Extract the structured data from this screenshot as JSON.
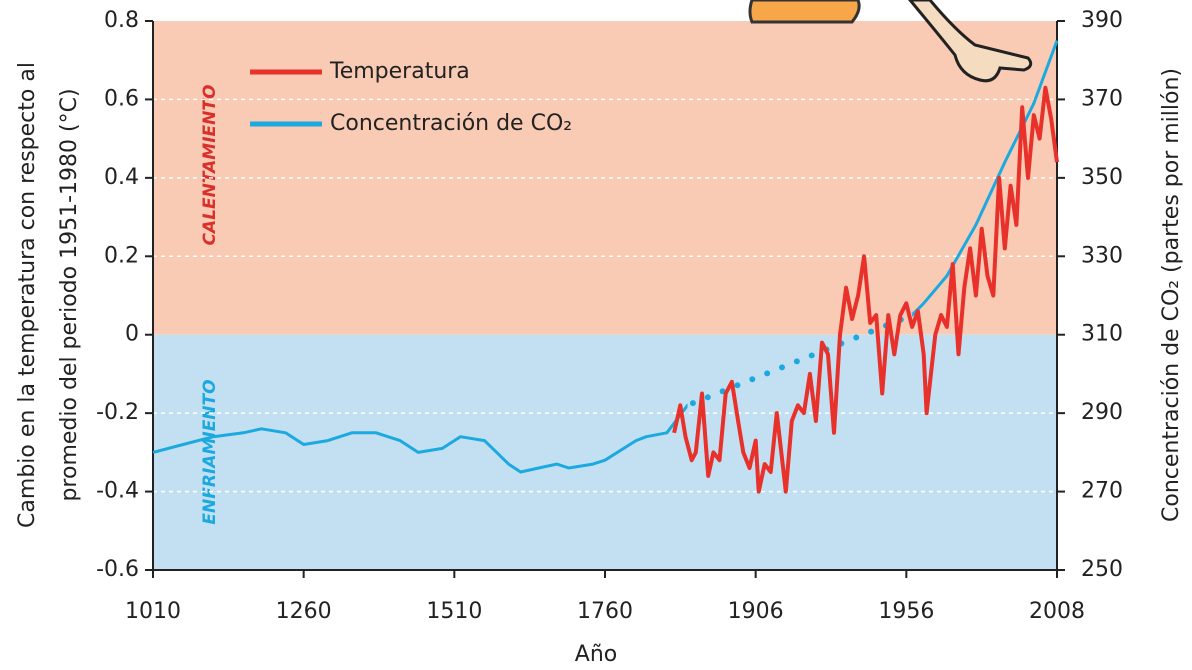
{
  "chart_data": {
    "type": "line",
    "y_label_lines": [
      "Cambio en la temperatura con respecto al",
      "promedio del periodo 1951-1980 (°C)"
    ],
    "y2_label": "Concentración de CO₂ (partes por millón)",
    "x_label": "Año",
    "annotations": [
      "CALENTAMIENTO",
      "ENFRIAMIENTO"
    ],
    "background": {
      "above_zero": "#f9cbb5",
      "below_zero": "#c3e0f2"
    },
    "xticks": [
      1010,
      1260,
      1510,
      1760,
      1906,
      1956,
      2008
    ],
    "xlim": [
      1010,
      2008
    ],
    "ylim": [
      -0.6,
      0.8
    ],
    "yticks": [
      0.8,
      0.6,
      0.4,
      0.2,
      0,
      -0.2,
      -0.4,
      -0.6
    ],
    "y2lim": [
      250,
      390
    ],
    "y2ticks": [
      390,
      370,
      350,
      330,
      310,
      290,
      270,
      250
    ],
    "grid": true,
    "legend": "top-left",
    "series": [
      {
        "name": "Temperatura",
        "color": "#e8312a",
        "x": [
          1827,
          1833,
          1838,
          1844,
          1848,
          1854,
          1860,
          1865,
          1871,
          1877,
          1883,
          1889,
          1894,
          1900,
          1906,
          1907,
          1909,
          1911,
          1913,
          1916,
          1918,
          1920,
          1922,
          1924,
          1926,
          1928,
          1930,
          1932,
          1934,
          1936,
          1938,
          1940,
          1942,
          1944,
          1946,
          1948,
          1950,
          1952,
          1954,
          1956,
          1958,
          1960,
          1962,
          1963,
          1966,
          1968,
          1970,
          1972,
          1974,
          1976,
          1978,
          1980,
          1982,
          1984,
          1986,
          1988,
          1990,
          1992,
          1994,
          1996,
          1998,
          2000,
          2002,
          2004,
          2006,
          2008
        ],
        "values": [
          -0.25,
          -0.18,
          -0.26,
          -0.32,
          -0.3,
          -0.15,
          -0.36,
          -0.3,
          -0.32,
          -0.15,
          -0.12,
          -0.22,
          -0.3,
          -0.34,
          -0.27,
          -0.4,
          -0.33,
          -0.35,
          -0.2,
          -0.4,
          -0.22,
          -0.18,
          -0.2,
          -0.1,
          -0.22,
          -0.02,
          -0.05,
          -0.25,
          0,
          0.12,
          0.04,
          0.1,
          0.2,
          0.03,
          0.05,
          -0.15,
          0.05,
          -0.05,
          0.05,
          0.08,
          0.02,
          0.06,
          -0.05,
          -0.2,
          0,
          0.05,
          0.02,
          0.18,
          -0.05,
          0.12,
          0.22,
          0.1,
          0.27,
          0.15,
          0.1,
          0.4,
          0.22,
          0.38,
          0.28,
          0.58,
          0.4,
          0.56,
          0.5,
          0.63,
          0.55,
          0.44
        ]
      },
      {
        "name": "Concentración de CO₂",
        "color": "#1ba9e0",
        "axis": "y2",
        "dotted_x": [
          1840,
          1958
        ],
        "x": [
          1010,
          1060,
          1110,
          1160,
          1190,
          1230,
          1260,
          1300,
          1340,
          1380,
          1420,
          1450,
          1490,
          1520,
          1560,
          1600,
          1620,
          1650,
          1680,
          1700,
          1740,
          1760,
          1790,
          1800,
          1820,
          1840,
          1958,
          1962,
          1970,
          1980,
          1990,
          2000,
          2008
        ],
        "values": [
          280,
          282,
          284,
          285,
          286,
          285,
          282,
          283,
          285,
          285,
          283,
          280,
          281,
          284,
          283,
          277,
          275,
          276,
          277,
          276,
          277,
          278,
          283,
          284,
          285,
          292,
          315,
          318,
          325,
          338,
          354,
          369,
          385
        ]
      }
    ]
  }
}
